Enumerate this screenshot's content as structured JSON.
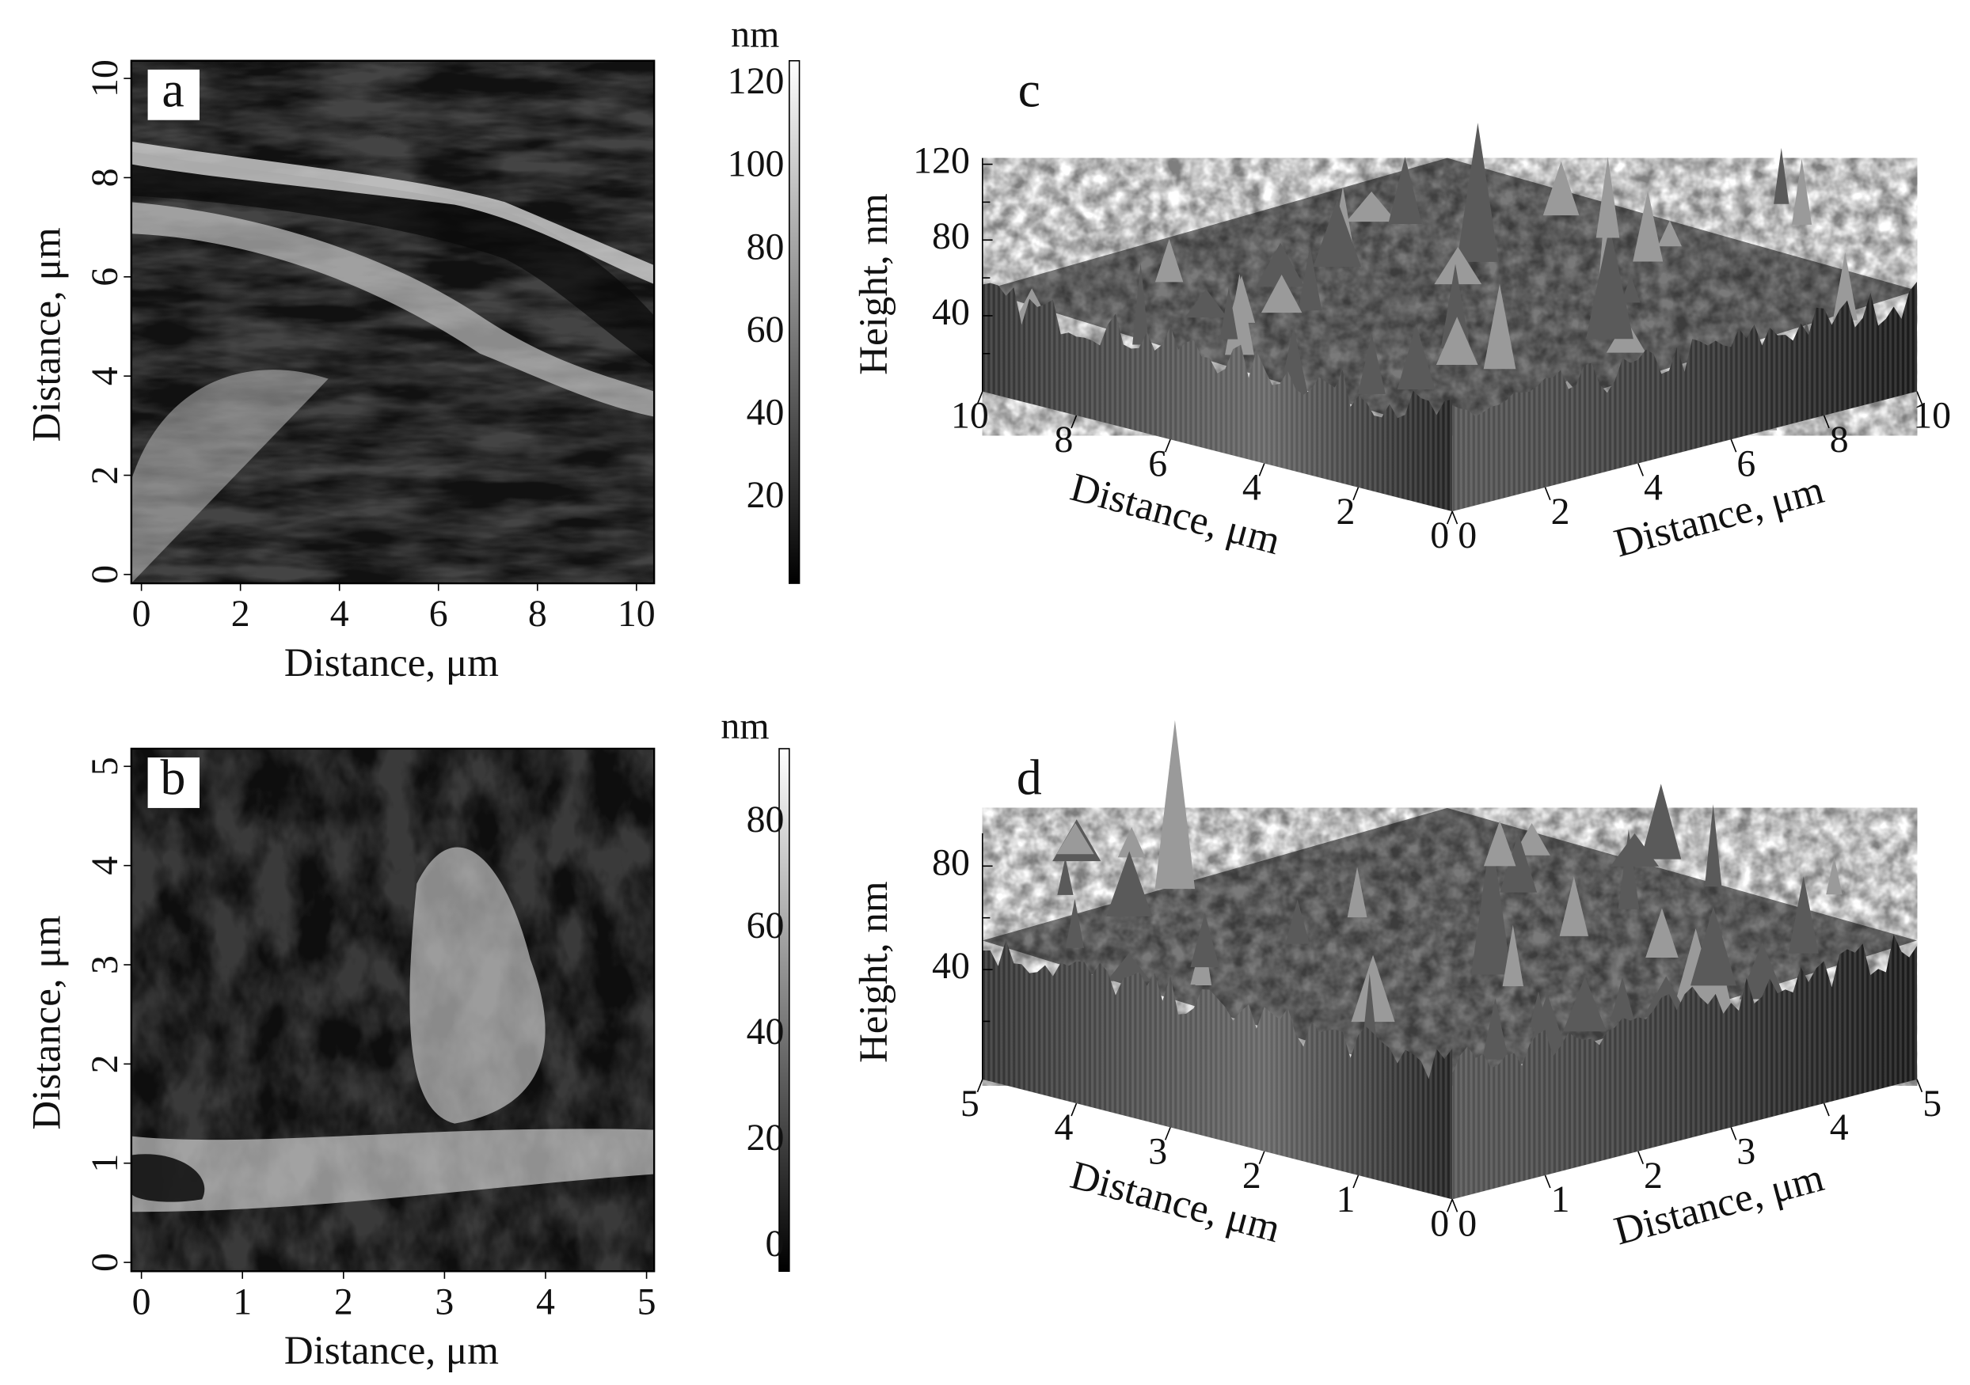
{
  "panels": [
    {
      "label": "a",
      "x_label": "Distance, μm",
      "y_label": "Distance, μm",
      "x_ticks": [
        0,
        2,
        4,
        6,
        8,
        10
      ],
      "y_ticks": [
        0,
        2,
        4,
        6,
        8,
        10
      ],
      "colorbar": {
        "unit": "nm",
        "ticks": [
          20,
          40,
          60,
          80,
          100,
          120
        ]
      }
    },
    {
      "label": "b",
      "x_label": "Distance, μm",
      "y_label": "Distance, μm",
      "x_ticks": [
        0,
        1,
        2,
        3,
        4,
        5
      ],
      "y_ticks": [
        0,
        1,
        2,
        3,
        4,
        5
      ],
      "colorbar": {
        "unit": "nm",
        "ticks": [
          0,
          20,
          40,
          60,
          80
        ]
      }
    },
    {
      "label": "c",
      "z_label": "Height, nm",
      "z_ticks": [
        40,
        80,
        120
      ],
      "left_axis_label": "Distance, μm",
      "left_ticks": [
        10,
        8,
        6,
        4,
        2,
        0
      ],
      "right_axis_label": "Distance, μm",
      "right_ticks": [
        0,
        2,
        4,
        6,
        8,
        10
      ]
    },
    {
      "label": "d",
      "z_label": "Height, nm",
      "z_ticks": [
        40,
        80
      ],
      "left_axis_label": "Distance, μm",
      "left_ticks": [
        5,
        4,
        3,
        2,
        1,
        0
      ],
      "right_axis_label": "Distance, μm",
      "right_ticks": [
        0,
        1,
        2,
        3,
        4,
        5
      ]
    }
  ]
}
